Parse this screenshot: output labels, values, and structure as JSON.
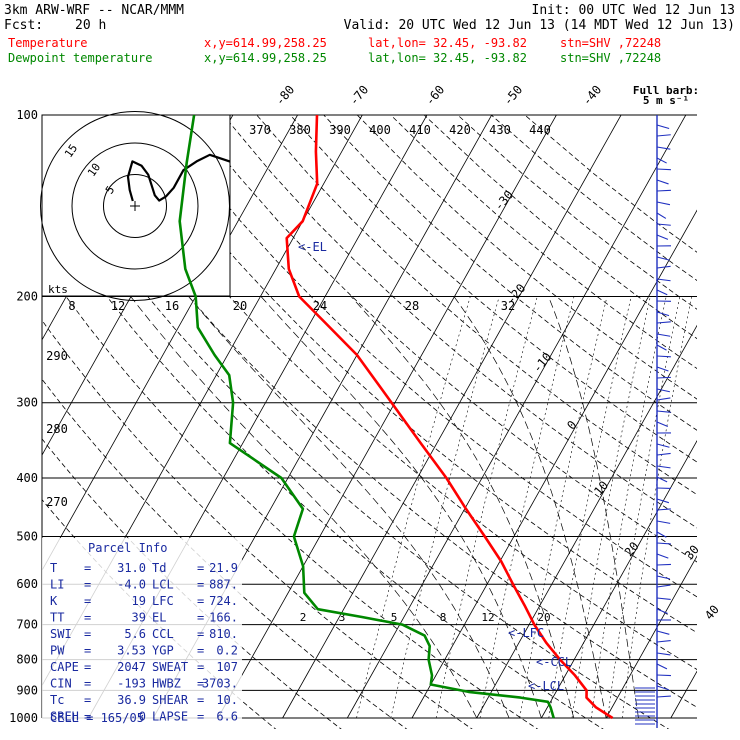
{
  "header": {
    "model": "3km ARW-WRF -- NCAR/MMM",
    "init": "Init: 00 UTC Wed 12 Jun 13",
    "fcst_label": "Fcst:",
    "fcst_value": "20 h",
    "valid": "Valid: 20 UTC Wed 12 Jun 13 (14 MDT Wed 12 Jun 13)",
    "temp_line": {
      "label": "Temperature",
      "xy": "x,y=614.99,258.25",
      "latlon": "lat,lon= 32.45, -93.82",
      "stn": "stn=SHV ,72248",
      "color": "#ff0000"
    },
    "dew_line": {
      "label": "Dewpoint temperature",
      "xy": "x,y=614.99,258.25",
      "latlon": "lat,lon= 32.45, -93.82",
      "stn": "stn=SHV ,72248",
      "color": "#008800"
    }
  },
  "barb_key": {
    "line1": "Full barb:",
    "line2": "5 m s⁻¹"
  },
  "chart_data": {
    "type": "line",
    "diagram": "skew-T log-p",
    "pressure_ticks": [
      "100",
      "200",
      "300",
      "400",
      "500",
      "600",
      "700",
      "800",
      "900",
      "1000"
    ],
    "isotherm_labels": [
      "-40",
      "-30",
      "-20",
      "-10",
      "0",
      "10",
      "20",
      "30",
      "40"
    ],
    "top_isotherm_labels": [
      "-80",
      "-70",
      "-60",
      "-50",
      "-40"
    ],
    "theta_labels_top": [
      "370",
      "380",
      "390",
      "400",
      "410",
      "420",
      "430",
      "440"
    ],
    "theta_labels_left": [
      "290",
      "280",
      "270"
    ],
    "mixing_ratio_labels_upper": [
      "8",
      "12",
      "16",
      "20",
      "24",
      "28",
      "32"
    ],
    "mixing_ratio_labels_lower": [
      "2",
      "3",
      "5",
      "8",
      "12",
      "20"
    ],
    "level_markers": [
      "<-EL",
      "<-LFC",
      "<-CCL",
      "<-LCL"
    ],
    "series": [
      {
        "name": "Temperature",
        "color": "#ff0000",
        "points": [
          [
            1000,
            31.0
          ],
          [
            960,
            27.5
          ],
          [
            925,
            25.2
          ],
          [
            900,
            24.6
          ],
          [
            850,
            21.5
          ],
          [
            800,
            17.8
          ],
          [
            750,
            14.2
          ],
          [
            700,
            10.8
          ],
          [
            650,
            7.6
          ],
          [
            600,
            4.0
          ],
          [
            550,
            0.2
          ],
          [
            500,
            -4.5
          ],
          [
            450,
            -9.8
          ],
          [
            400,
            -15.5
          ],
          [
            350,
            -22.5
          ],
          [
            300,
            -30.5
          ],
          [
            250,
            -40.0
          ],
          [
            220,
            -48.0
          ],
          [
            200,
            -54.0
          ],
          [
            180,
            -58.0
          ],
          [
            160,
            -61.0
          ],
          [
            150,
            -60.0
          ],
          [
            130,
            -61.0
          ],
          [
            115,
            -64.0
          ],
          [
            100,
            -67.0
          ]
        ]
      },
      {
        "name": "Dewpoint temperature",
        "color": "#008800",
        "points": [
          [
            1000,
            21.9
          ],
          [
            960,
            20.5
          ],
          [
            940,
            19.6
          ],
          [
            925,
            15.0
          ],
          [
            905,
            6.5
          ],
          [
            880,
            0.0
          ],
          [
            850,
            -0.6
          ],
          [
            800,
            -2.5
          ],
          [
            760,
            -3.5
          ],
          [
            730,
            -5.2
          ],
          [
            700,
            -9.6
          ],
          [
            680,
            -16.5
          ],
          [
            660,
            -24.0
          ],
          [
            620,
            -27.5
          ],
          [
            560,
            -30.0
          ],
          [
            500,
            -34.0
          ],
          [
            450,
            -35.0
          ],
          [
            400,
            -41.0
          ],
          [
            350,
            -52.0
          ],
          [
            300,
            -55.0
          ],
          [
            270,
            -58.0
          ],
          [
            250,
            -62.0
          ],
          [
            225,
            -67.0
          ],
          [
            200,
            -70.0
          ],
          [
            180,
            -74.0
          ],
          [
            150,
            -79.0
          ],
          [
            120,
            -83.0
          ],
          [
            100,
            -86.0
          ]
        ]
      }
    ],
    "parcel_info": {
      "title": "Parcel Info",
      "rows": [
        [
          "T",
          "=",
          "31.0",
          "Td",
          "=",
          "21.9"
        ],
        [
          "LI",
          "=",
          "-4.0",
          "LCL",
          "=",
          "887."
        ],
        [
          "K",
          "=",
          "19",
          "LFC",
          "=",
          "724."
        ],
        [
          "TT",
          "=",
          "39",
          "EL",
          "=",
          "166."
        ],
        [
          "SWI",
          "=",
          "5.6",
          "CCL",
          "=",
          "810."
        ],
        [
          "PW",
          "=",
          "3.53",
          "YGP",
          "=",
          "0.2"
        ],
        [
          "CAPE",
          "=",
          "2047",
          "SWEAT",
          "=",
          "107"
        ],
        [
          "CIN",
          "=",
          "-193",
          "HWBZ",
          "=",
          "3703."
        ],
        [
          "Tc",
          "=",
          "36.9",
          "SHEAR",
          "=",
          "10."
        ],
        [
          "SREH",
          "=",
          "0",
          "LAPSE",
          "=",
          "6.6"
        ]
      ],
      "cell": "CELL = 165/05"
    },
    "hodograph": {
      "speed_label": "kts",
      "ring_labels": [
        "5",
        "10",
        "15"
      ],
      "points": [
        [
          -0.5,
          2.5
        ],
        [
          -1.2,
          5.0
        ],
        [
          -1.6,
          8.0
        ],
        [
          -0.6,
          11.5
        ],
        [
          1.5,
          10.5
        ],
        [
          3.0,
          8.5
        ],
        [
          3.8,
          6.0
        ],
        [
          4.5,
          3.8
        ],
        [
          5.5,
          2.6
        ],
        [
          7.0,
          3.5
        ],
        [
          8.8,
          5.5
        ],
        [
          11.0,
          9.5
        ],
        [
          14.0,
          11.5
        ],
        [
          17.0,
          13.0
        ],
        [
          23.0,
          11.0
        ]
      ]
    },
    "wind_profile": "wind barbs at right margin, 1000-100 hPa"
  }
}
